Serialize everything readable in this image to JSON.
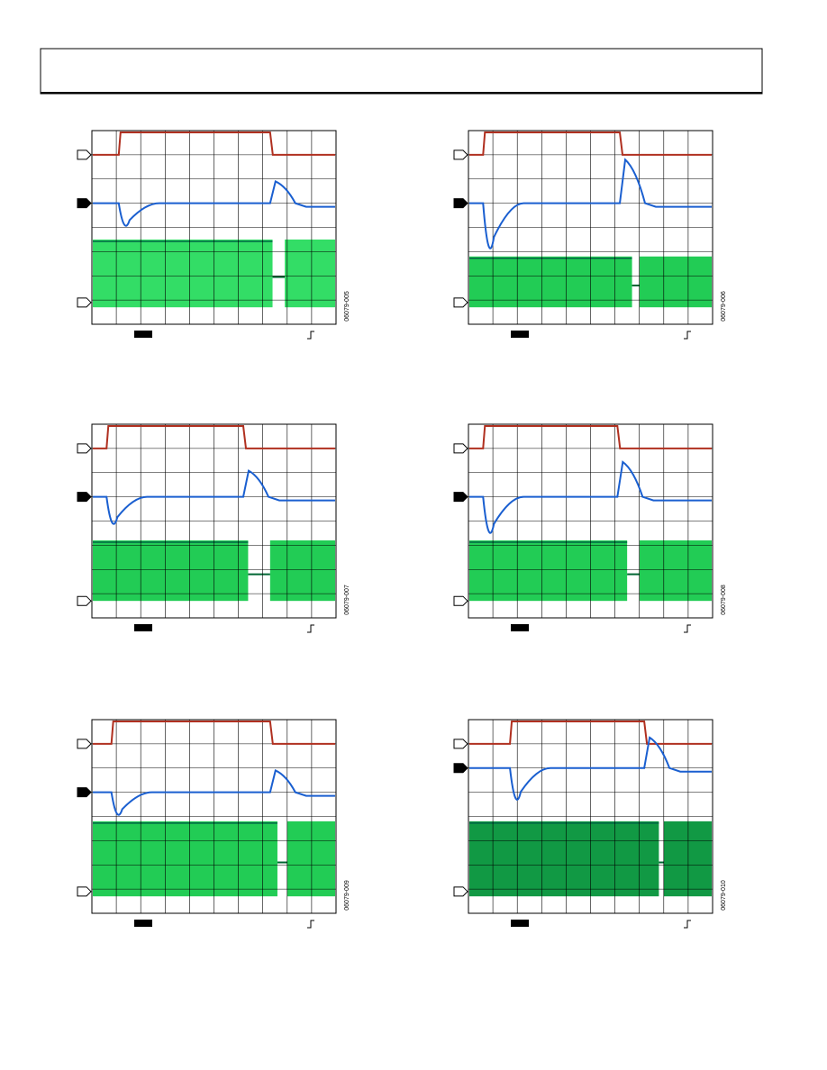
{
  "figures": [
    {
      "id": "06079-005"
    },
    {
      "id": "06079-006"
    },
    {
      "id": "06079-007"
    },
    {
      "id": "06079-008"
    },
    {
      "id": "06079-009"
    },
    {
      "id": "06079-010"
    }
  ]
}
